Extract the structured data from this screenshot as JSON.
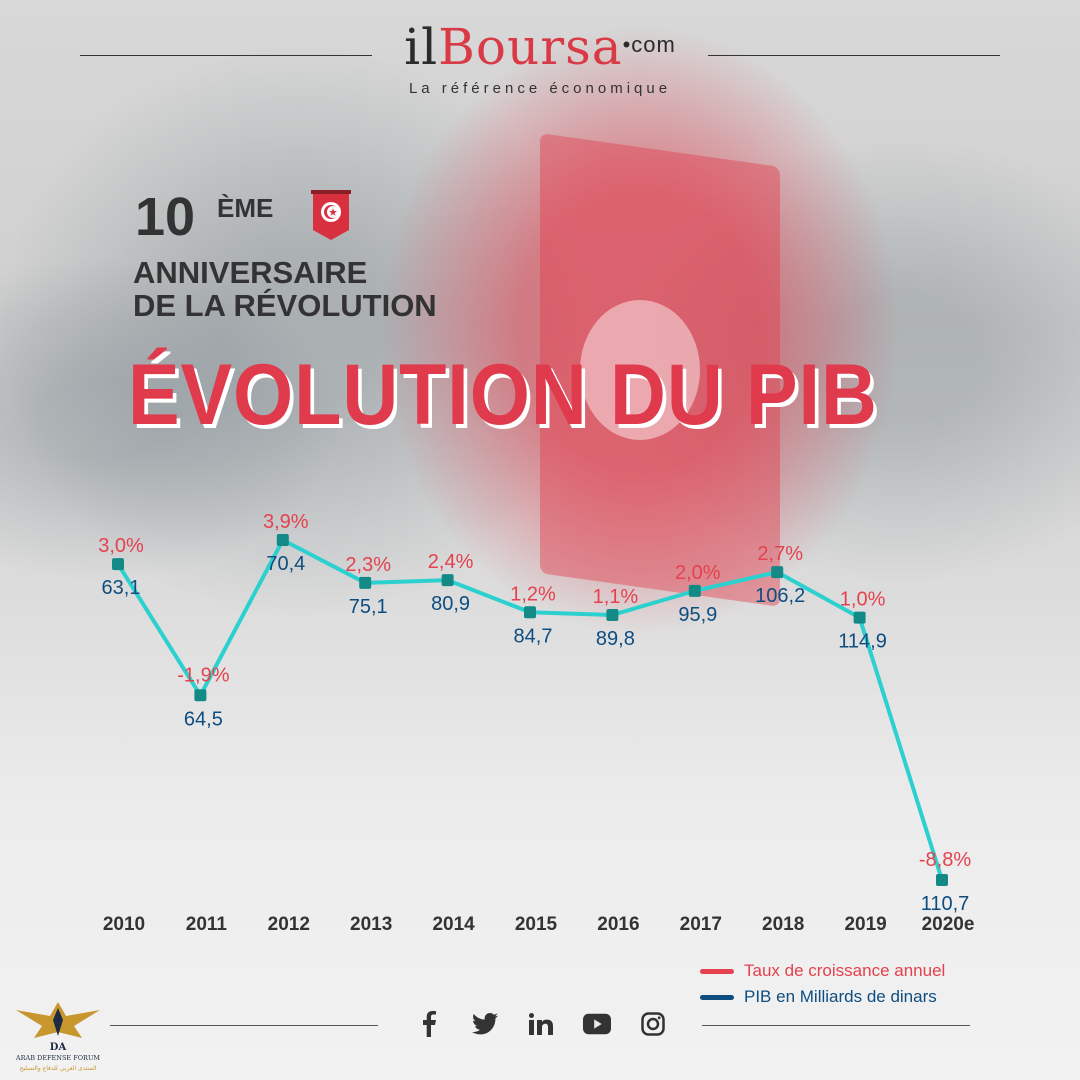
{
  "header": {
    "logo_part1": "il",
    "logo_part2": "Boursa",
    "logo_dot": "•",
    "logo_part3": "com",
    "tagline": "La référence économique"
  },
  "anniversary": {
    "number": "10",
    "suffix": "ÈME",
    "line1": "ANNIVERSAIRE",
    "line2": "DE LA RÉVOLUTION"
  },
  "title": "ÉVOLUTION DU PIB",
  "colors": {
    "growth": "#e5414e",
    "gdp": "#0e4d80",
    "line": "#2bd0cf",
    "marker": "#148a86"
  },
  "chart_data": {
    "type": "line",
    "title": "ÉVOLUTION DU PIB",
    "categories": [
      "2010",
      "2011",
      "2012",
      "2013",
      "2014",
      "2015",
      "2016",
      "2017",
      "2018",
      "2019",
      "2020e"
    ],
    "series": [
      {
        "name": "PIB en Milliards de dinars",
        "values": [
          63.1,
          64.5,
          70.4,
          75.1,
          80.9,
          84.7,
          89.8,
          95.9,
          106.2,
          114.9,
          110.7
        ],
        "labels": [
          "63,1",
          "64,5",
          "70,4",
          "75,1",
          "80,9",
          "84,7",
          "89,8",
          "95,9",
          "106,2",
          "114,9",
          "110,7"
        ]
      },
      {
        "name": "Taux de croissance annuel",
        "values": [
          3.0,
          -1.9,
          3.9,
          2.3,
          2.4,
          1.2,
          1.1,
          2.0,
          2.7,
          1.0,
          -8.8
        ],
        "labels": [
          "3,0%",
          "-1,9%",
          "3,9%",
          "2,3%",
          "2,4%",
          "1,2%",
          "1,1%",
          "2,0%",
          "2,7%",
          "1,0%",
          "-8,8%"
        ]
      }
    ],
    "line_follows": "Taux de croissance annuel",
    "ylim": [
      -8.8,
      3.9
    ],
    "grid": false,
    "legend_position": "bottom-right"
  },
  "legend": [
    {
      "label": "Taux de croissance annuel",
      "color": "#e5414e"
    },
    {
      "label": "PIB en Milliards de dinars",
      "color": "#0e4d80"
    }
  ],
  "socials": [
    "facebook-icon",
    "twitter-icon",
    "linkedin-icon",
    "youtube-icon",
    "instagram-icon"
  ],
  "footer_logo": {
    "line1": "DA",
    "line2": "ARAB DEFENSE FORUM",
    "line3": "المنتدى العربي للدفاع والتسليح"
  }
}
